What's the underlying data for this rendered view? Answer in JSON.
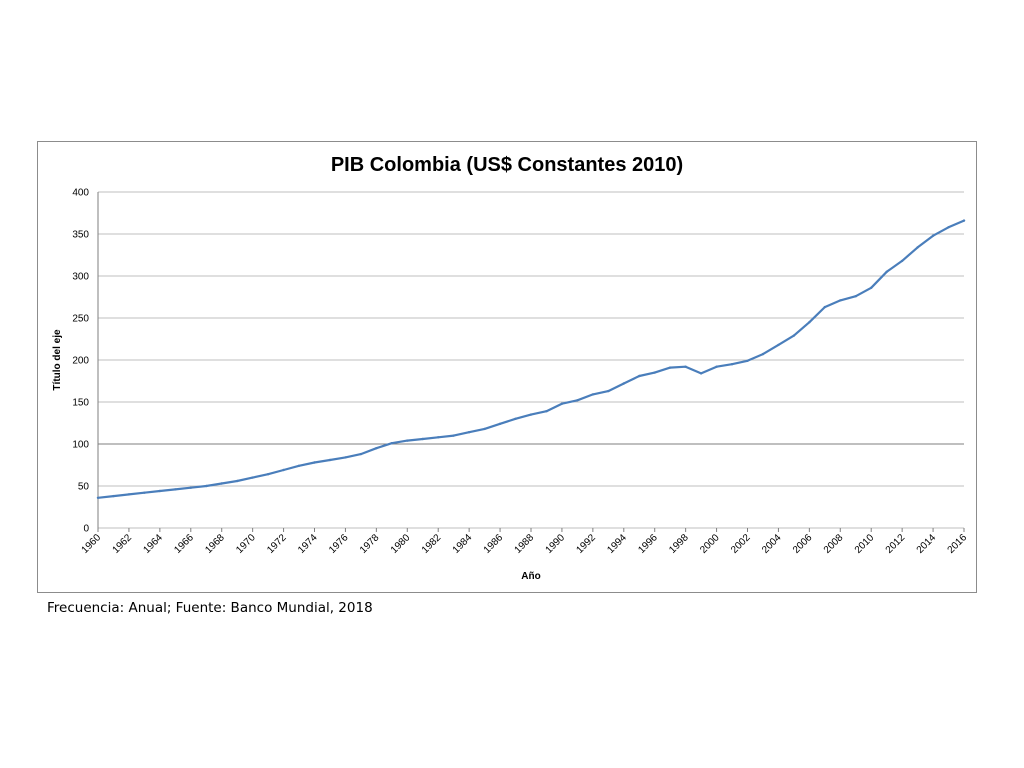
{
  "caption": "Frecuencia: Anual; Fuente: Banco Mundial, 2018",
  "colors": {
    "line": "#4a7ebb",
    "grid": "#bfbfbf",
    "grid_emphasis": "#7f7f7f",
    "frame": "#8c8c8c"
  },
  "chart_data": {
    "type": "line",
    "title": "PIB Colombia (US$ Constantes 2010)",
    "xlabel": "Año",
    "ylabel": "Título del eje",
    "ylim": [
      0,
      400
    ],
    "yticks": [
      0,
      50,
      100,
      150,
      200,
      250,
      300,
      350,
      400
    ],
    "xticks": [
      "1960",
      "1962",
      "1964",
      "1966",
      "1968",
      "1970",
      "1972",
      "1974",
      "1976",
      "1978",
      "1980",
      "1982",
      "1984",
      "1986",
      "1988",
      "1990",
      "1992",
      "1994",
      "1996",
      "1998",
      "2000",
      "2002",
      "2004",
      "2006",
      "2008",
      "2010",
      "2012",
      "2014",
      "2016"
    ],
    "grid": true,
    "legend": "none",
    "x": [
      1960,
      1961,
      1962,
      1963,
      1964,
      1965,
      1966,
      1967,
      1968,
      1969,
      1970,
      1971,
      1972,
      1973,
      1974,
      1975,
      1976,
      1977,
      1978,
      1979,
      1980,
      1981,
      1982,
      1983,
      1984,
      1985,
      1986,
      1987,
      1988,
      1989,
      1990,
      1991,
      1992,
      1993,
      1994,
      1995,
      1996,
      1997,
      1998,
      1999,
      2000,
      2001,
      2002,
      2003,
      2004,
      2005,
      2006,
      2007,
      2008,
      2009,
      2010,
      2011,
      2012,
      2013,
      2014,
      2015,
      2016
    ],
    "series": [
      {
        "values": [
          36,
          38,
          40,
          42,
          44,
          46,
          48,
          50,
          53,
          56,
          60,
          64,
          69,
          74,
          78,
          81,
          84,
          88,
          95,
          101,
          104,
          106,
          108,
          110,
          114,
          118,
          124,
          130,
          135,
          139,
          148,
          152,
          159,
          163,
          172,
          181,
          185,
          191,
          192,
          184,
          192,
          195,
          199,
          207,
          218,
          229,
          245,
          263,
          271,
          276,
          286,
          305,
          318,
          334,
          348,
          358,
          366
        ]
      }
    ]
  }
}
